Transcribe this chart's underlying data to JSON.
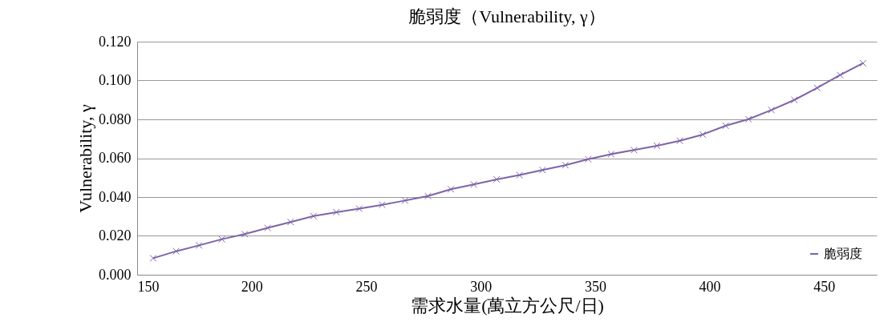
{
  "chart_data": {
    "type": "line",
    "title": "脆弱度（Vulnerability, γ）",
    "xlabel": "需求水量(萬立方公尺/日)",
    "ylabel": "Vulnerability, γ",
    "x": [
      157,
      167,
      177,
      187,
      197,
      207,
      217,
      227,
      237,
      247,
      257,
      267,
      277,
      287,
      297,
      307,
      317,
      327,
      337,
      347,
      357,
      367,
      377,
      387,
      397,
      407,
      417,
      427,
      437,
      447,
      457,
      467
    ],
    "series": [
      {
        "name": "脆弱度",
        "color": "#7f63a8",
        "values": [
          0.0085,
          0.0121,
          0.0151,
          0.0183,
          0.0209,
          0.0241,
          0.0271,
          0.0302,
          0.0322,
          0.034,
          0.036,
          0.0382,
          0.0405,
          0.044,
          0.0465,
          0.0491,
          0.0513,
          0.0539,
          0.0564,
          0.0595,
          0.0621,
          0.0642,
          0.0664,
          0.069,
          0.0722,
          0.0767,
          0.0801,
          0.0848,
          0.09,
          0.0962,
          0.1028,
          0.1089
        ]
      }
    ],
    "xlim": [
      150,
      473
    ],
    "xticks": [
      150,
      200,
      250,
      300,
      350,
      400,
      450
    ],
    "ylim": [
      0,
      0.12
    ],
    "yticks": [
      {
        "value": 0,
        "label": "0.000"
      },
      {
        "value": 0.02,
        "label": "0.020"
      },
      {
        "value": 0.04,
        "label": "0.040"
      },
      {
        "value": 0.06,
        "label": "0.060"
      },
      {
        "value": 0.08,
        "label": "0.080"
      },
      {
        "value": 0.1,
        "label": "0.100"
      },
      {
        "value": 0.12,
        "label": "0.120"
      }
    ],
    "grid": "y",
    "legend": "bottom right",
    "marker": "cross",
    "line_style": "solid"
  }
}
